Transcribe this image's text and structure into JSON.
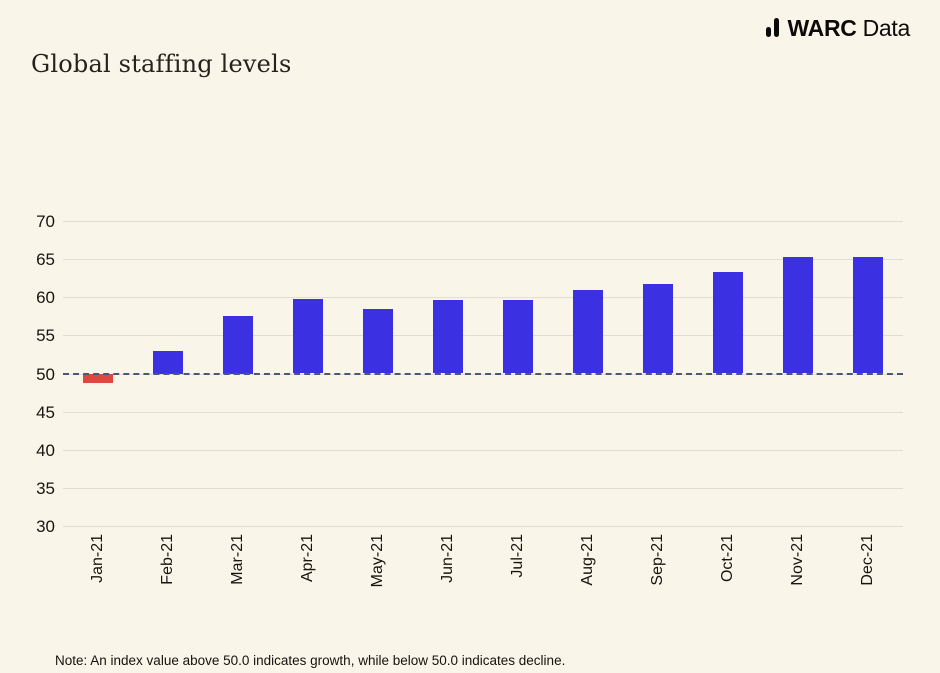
{
  "header": {
    "title": "Global staffing levels",
    "logo": {
      "icon": "bar-chart-icon",
      "brand_bold": "WARC",
      "brand_regular": "Data"
    }
  },
  "chart_data": {
    "type": "bar",
    "title": "Global staffing levels",
    "categories": [
      "Jan-21",
      "Feb-21",
      "Mar-21",
      "Apr-21",
      "May-21",
      "Jun-21",
      "Jul-21",
      "Aug-21",
      "Sep-21",
      "Oct-21",
      "Nov-21",
      "Dec-21"
    ],
    "values": [
      48.7,
      53.0,
      57.5,
      59.8,
      58.4,
      59.6,
      59.7,
      60.9,
      61.7,
      63.3,
      65.3,
      65.3
    ],
    "xlabel": "",
    "ylabel": "",
    "ylim": [
      30,
      70
    ],
    "yticks": [
      30,
      35,
      40,
      45,
      50,
      55,
      60,
      65,
      70
    ],
    "grid": true,
    "legend": "none",
    "reference_line": {
      "value": 50,
      "style": "dashed",
      "color": "#4A5878"
    },
    "colors": {
      "above_reference": "#3B31E3",
      "below_reference": "#E0463D",
      "background": "#FAF5E9",
      "gridline": "#E1DDD3"
    }
  },
  "note": "Note: An index value above 50.0 indicates growth, while below 50.0 indicates decline."
}
